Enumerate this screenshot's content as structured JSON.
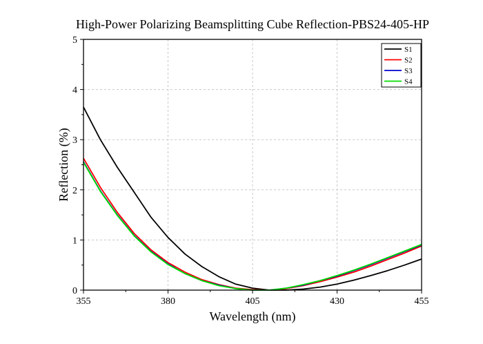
{
  "chart_data": {
    "type": "line",
    "title": "High-Power Polarizing Beamsplitting Cube Reflection-PBS24-405-HP",
    "xlabel": "Wavelength (nm)",
    "ylabel": "Reflection (%)",
    "xlim": [
      355,
      455
    ],
    "ylim": [
      0,
      5
    ],
    "xticks": [
      355,
      380,
      405,
      430,
      455
    ],
    "yticks": [
      0,
      1,
      2,
      3,
      4,
      5
    ],
    "grid": true,
    "legend_position": "top-right",
    "series": [
      {
        "name": "S1",
        "color": "#000000",
        "x": [
          355,
          360,
          365,
          370,
          375,
          380,
          385,
          390,
          395,
          400,
          405,
          410,
          415,
          420,
          425,
          430,
          435,
          440,
          445,
          450,
          455
        ],
        "y": [
          3.65,
          3.0,
          2.45,
          1.95,
          1.45,
          1.05,
          0.72,
          0.47,
          0.27,
          0.12,
          0.04,
          0.0,
          0.0,
          0.02,
          0.06,
          0.12,
          0.2,
          0.29,
          0.39,
          0.5,
          0.62
        ]
      },
      {
        "name": "S2",
        "color": "#ff0000",
        "x": [
          355,
          360,
          365,
          370,
          375,
          380,
          385,
          390,
          395,
          400,
          405,
          410,
          415,
          420,
          425,
          430,
          435,
          440,
          445,
          450,
          455
        ],
        "y": [
          2.63,
          2.05,
          1.55,
          1.13,
          0.8,
          0.55,
          0.36,
          0.21,
          0.11,
          0.04,
          0.01,
          0.0,
          0.03,
          0.09,
          0.17,
          0.26,
          0.36,
          0.48,
          0.61,
          0.74,
          0.88
        ]
      },
      {
        "name": "S3",
        "color": "#0000cc",
        "x": [
          355,
          360,
          365,
          370,
          375,
          380,
          385,
          390,
          395,
          400,
          405,
          410,
          415,
          420,
          425,
          430,
          435,
          440,
          445,
          450,
          455
        ],
        "y": [
          2.56,
          1.98,
          1.5,
          1.09,
          0.77,
          0.52,
          0.33,
          0.19,
          0.1,
          0.03,
          0.0,
          0.0,
          0.04,
          0.1,
          0.19,
          0.28,
          0.39,
          0.51,
          0.64,
          0.77,
          0.9
        ]
      },
      {
        "name": "S4",
        "color": "#00dd00",
        "x": [
          355,
          360,
          365,
          370,
          375,
          380,
          385,
          390,
          395,
          400,
          405,
          410,
          415,
          420,
          425,
          430,
          435,
          440,
          445,
          450,
          455
        ],
        "y": [
          2.55,
          1.97,
          1.49,
          1.08,
          0.76,
          0.51,
          0.33,
          0.19,
          0.09,
          0.03,
          0.0,
          0.0,
          0.04,
          0.11,
          0.19,
          0.29,
          0.4,
          0.52,
          0.65,
          0.78,
          0.91
        ]
      }
    ]
  }
}
